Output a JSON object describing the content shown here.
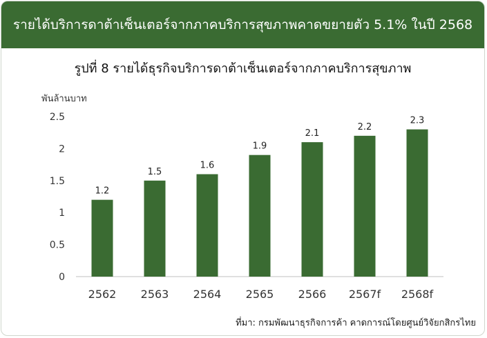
{
  "banner": {
    "text": "รายได้บริการดาต้าเซ็นเตอร์จากภาคบริการสุขภาพคาดขยายตัว 5.1% ในปี 2568"
  },
  "chart_data": {
    "type": "bar",
    "title": "รูปที่ 8 รายได้ธุรกิจบริการดาต้าเซ็นเตอร์จากภาคบริการสุขภาพ",
    "ylabel": "พันล้านบาท",
    "xlabel": "",
    "categories": [
      "2562",
      "2563",
      "2564",
      "2565",
      "2566",
      "2567f",
      "2568f"
    ],
    "values": [
      1.2,
      1.5,
      1.6,
      1.9,
      2.1,
      2.2,
      2.3
    ],
    "data_labels": [
      "1.2",
      "1.5",
      "1.6",
      "1.9",
      "2.1",
      "2.2",
      "2.3"
    ],
    "ylim": [
      0,
      2.5
    ],
    "yticks": [
      0,
      0.5,
      1,
      1.5,
      2,
      2.5
    ],
    "ytick_labels": [
      "0",
      "0.5",
      "1",
      "1.5",
      "2",
      "2.5"
    ],
    "grid": false,
    "legend": "none",
    "bar_color": "#3a6b32"
  },
  "source": {
    "text": "ที่มา: กรมพัฒนาธุรกิจการค้า คาดการณ์โดยศูนย์วิจัยกสิกรไทย"
  }
}
